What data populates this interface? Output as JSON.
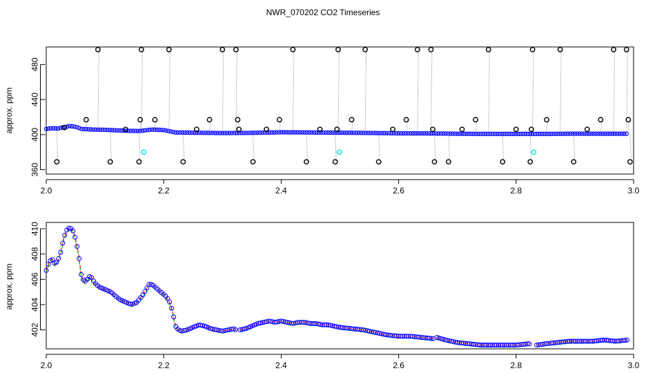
{
  "title": "NWR_070202  CO2 Timeseries",
  "colors": {
    "outlier": "#000000",
    "main": "#0000ff",
    "flag": "#00e5ee",
    "secondary_red": "#ff0000",
    "secondary_green": "#00cc00",
    "connector": "#9a9a9a"
  },
  "chart_data": [
    {
      "type": "scatter",
      "title": "NWR_070202  CO2 Timeseries",
      "xlabel": "",
      "ylabel": "approx. ppm",
      "xlim": [
        2.0,
        3.0
      ],
      "ylim": [
        355,
        500
      ],
      "xticks": [
        "2.0",
        "2.2",
        "2.4",
        "2.6",
        "2.8",
        "3.0"
      ],
      "yticks": [
        "360",
        "400",
        "440",
        "480"
      ],
      "grid": false,
      "series": [
        {
          "color": "blue",
          "x": [
            2.0,
            2.01,
            2.02,
            2.03,
            2.04,
            2.05,
            2.06,
            2.08,
            2.1,
            2.12,
            2.14,
            2.16,
            2.18,
            2.2,
            2.22,
            2.25,
            2.3,
            2.35,
            2.4,
            2.45,
            2.5,
            2.55,
            2.6,
            2.65,
            2.7,
            2.75,
            2.8,
            2.85,
            2.9,
            2.95,
            2.99
          ],
          "values": [
            406.5,
            407.3,
            407.0,
            408.5,
            409.8,
            409.0,
            406.5,
            405.8,
            405.5,
            404.9,
            404.3,
            404.2,
            405.8,
            405.2,
            402.5,
            402.2,
            401.8,
            402.0,
            402.7,
            402.5,
            402.2,
            401.9,
            401.5,
            401.4,
            401.0,
            400.8,
            400.8,
            400.8,
            401.1,
            401.0,
            401.0
          ]
        },
        {
          "color": "black",
          "x": [
            2.018,
            2.031,
            2.068,
            2.088,
            2.109,
            2.135,
            2.158,
            2.16,
            2.162,
            2.185,
            2.209,
            2.233,
            2.256,
            2.278,
            2.3,
            2.323,
            2.326,
            2.328,
            2.352,
            2.375,
            2.397,
            2.42,
            2.443,
            2.466,
            2.492,
            2.495,
            2.497,
            2.52,
            2.543,
            2.566,
            2.59,
            2.613,
            2.632,
            2.655,
            2.658,
            2.661,
            2.685,
            2.708,
            2.731,
            2.753,
            2.777,
            2.8,
            2.824,
            2.826,
            2.828,
            2.852,
            2.875,
            2.898,
            2.921,
            2.944,
            2.966,
            2.988,
            2.991,
            2.994
          ],
          "values": [
            369,
            408,
            417,
            497,
            369,
            406,
            369,
            417,
            497,
            417,
            497,
            369,
            406,
            417,
            497,
            497,
            417,
            406,
            369,
            406,
            417,
            497,
            369,
            406,
            369,
            406,
            497,
            417,
            497,
            369,
            406,
            417,
            497,
            497,
            406,
            369,
            369,
            406,
            417,
            497,
            369,
            406,
            369,
            406,
            497,
            417,
            497,
            369,
            406,
            417,
            497,
            497,
            417,
            369
          ]
        },
        {
          "color": "cyan",
          "x": [
            2.166,
            2.499,
            2.83
          ],
          "values": [
            380,
            380,
            380
          ]
        }
      ]
    },
    {
      "type": "line",
      "xlabel": "",
      "ylabel": "approx. ppm",
      "xlim": [
        2.0,
        3.0
      ],
      "ylim": [
        400.5,
        410.5
      ],
      "xticks": [
        "2.0",
        "2.2",
        "2.4",
        "2.6",
        "2.8",
        "3.0"
      ],
      "yticks": [
        "402",
        "404",
        "406",
        "408",
        "410"
      ],
      "grid": false,
      "gaps_after_x": [
        2.325,
        2.66,
        2.825
      ],
      "series": [
        {
          "x": [
            2.0,
            2.005,
            2.01,
            2.015,
            2.02,
            2.025,
            2.03,
            2.035,
            2.04,
            2.045,
            2.05,
            2.055,
            2.06,
            2.065,
            2.07,
            2.075,
            2.08,
            2.085,
            2.09,
            2.095,
            2.1,
            2.105,
            2.11,
            2.115,
            2.12,
            2.125,
            2.13,
            2.135,
            2.14,
            2.145,
            2.15,
            2.155,
            2.16,
            2.165,
            2.17,
            2.175,
            2.18,
            2.185,
            2.19,
            2.195,
            2.2,
            2.205,
            2.21,
            2.215,
            2.22,
            2.225,
            2.23,
            2.24,
            2.25,
            2.26,
            2.27,
            2.28,
            2.29,
            2.3,
            2.31,
            2.32,
            2.325,
            2.33,
            2.34,
            2.35,
            2.36,
            2.37,
            2.38,
            2.39,
            2.4,
            2.41,
            2.42,
            2.43,
            2.44,
            2.45,
            2.46,
            2.47,
            2.48,
            2.49,
            2.5,
            2.52,
            2.54,
            2.56,
            2.58,
            2.6,
            2.62,
            2.64,
            2.66,
            2.665,
            2.68,
            2.7,
            2.72,
            2.74,
            2.76,
            2.78,
            2.8,
            2.82,
            2.825,
            2.835,
            2.85,
            2.87,
            2.89,
            2.91,
            2.93,
            2.95,
            2.97,
            2.99
          ],
          "values": [
            406.7,
            407.4,
            407.6,
            407.2,
            407.5,
            408.2,
            409.3,
            409.9,
            410.1,
            409.9,
            409.2,
            408.0,
            406.2,
            405.8,
            406.0,
            406.3,
            405.9,
            405.6,
            405.4,
            405.3,
            405.2,
            405.1,
            405.0,
            404.8,
            404.6,
            404.4,
            404.3,
            404.2,
            404.1,
            404.0,
            404.1,
            404.2,
            404.5,
            404.8,
            405.2,
            405.6,
            405.6,
            405.4,
            405.2,
            405.0,
            404.8,
            404.6,
            404.2,
            403.5,
            402.3,
            402.0,
            401.9,
            402.0,
            402.2,
            402.4,
            402.3,
            402.1,
            402.0,
            401.9,
            402.0,
            402.1,
            401.9,
            402.0,
            402.1,
            402.3,
            402.5,
            402.6,
            402.7,
            402.6,
            402.7,
            402.6,
            402.5,
            402.6,
            402.6,
            402.5,
            402.5,
            402.4,
            402.4,
            402.3,
            402.2,
            402.1,
            402.0,
            401.8,
            401.6,
            401.5,
            401.5,
            401.4,
            401.3,
            401.4,
            401.2,
            401.0,
            400.9,
            400.8,
            400.8,
            400.8,
            400.8,
            400.9,
            400.9,
            400.8,
            400.9,
            401.0,
            401.1,
            401.1,
            401.1,
            401.2,
            401.1,
            401.2
          ]
        }
      ]
    }
  ]
}
